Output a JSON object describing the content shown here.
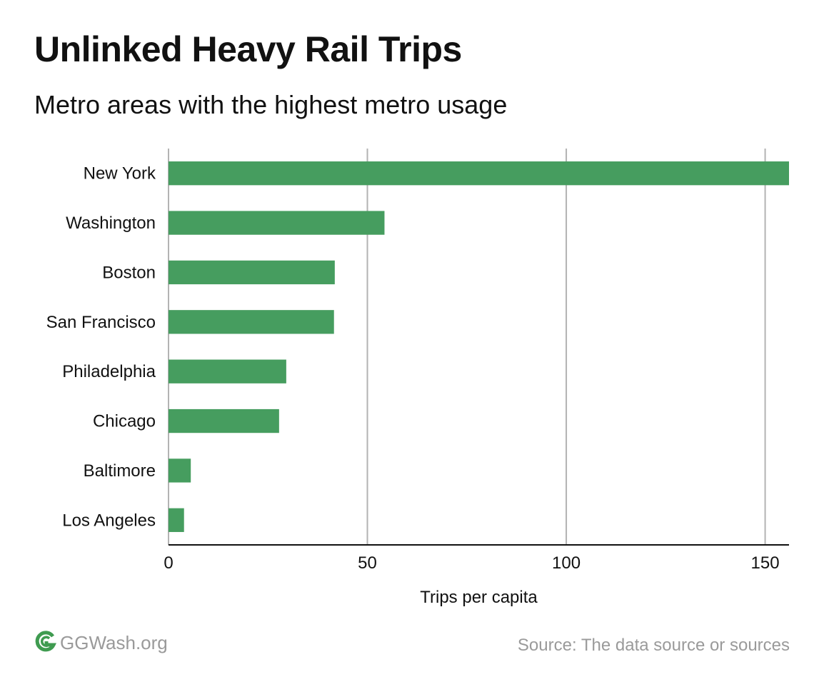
{
  "colors": {
    "bar": "#469d5f",
    "grid": "#b3b3b3",
    "axis": "#111111",
    "footer": "#9a9a9a"
  },
  "chart_data": {
    "type": "bar",
    "orientation": "horizontal",
    "title": "Unlinked Heavy Rail Trips",
    "subtitle": "Metro areas with the highest metro usage",
    "categories": [
      "New York",
      "Washington",
      "Boston",
      "San Francisco",
      "Philadelphia",
      "Chicago",
      "Baltimore",
      "Los Angeles"
    ],
    "values": [
      156,
      54.3,
      41.8,
      41.6,
      29.6,
      27.8,
      5.6,
      3.9
    ],
    "xlabel": "Trips per capita",
    "ylabel": "",
    "xlim": [
      0,
      156
    ],
    "xticks": [
      0,
      50,
      100,
      150
    ],
    "grid": true,
    "legend": "none"
  },
  "footer": {
    "brand": "GGWash.org",
    "logo_icon": "ggwash-logo-icon",
    "source": "Source: The data source or sources"
  }
}
